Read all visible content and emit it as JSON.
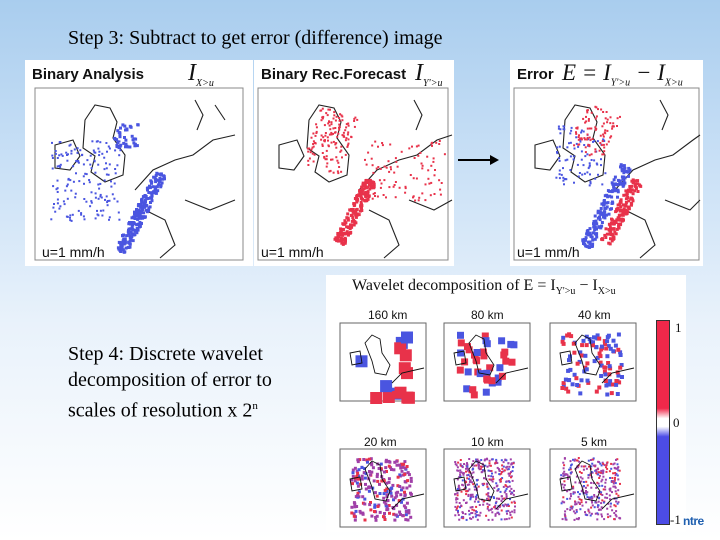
{
  "slide": {
    "step3_title": "Step 3: Subtract to get error (difference) image",
    "step4_line1": "Step 4: Discrete wavelet",
    "step4_line2": "decomposition of error to",
    "step4_line3": "scales of resolution x 2",
    "step4_exponent": "n"
  },
  "panels": [
    {
      "label": "Binary Analysis",
      "eq_main": "I",
      "eq_sub": "X>u",
      "unit": "u=1 mm/h",
      "color": "#4a55e0"
    },
    {
      "label": "Binary Rec.Forecast",
      "eq_main": "I",
      "eq_sub": "Y'>u",
      "unit": "u=1 mm/h",
      "color": "#e8324a"
    },
    {
      "label": "Error",
      "eq_main": "E = I",
      "eq_sub": "Y'>u",
      "eq_mid": " − I",
      "eq_sub2": "X>u",
      "unit": "u=1 mm/h"
    }
  ],
  "wavelet": {
    "title": "Wavelet decomposition of E = I",
    "title_sub1": "Y'>u",
    "title_mid": " − I",
    "title_sub2": "X>u",
    "scales": [
      "160 km",
      "80 km",
      "40 km",
      "20 km",
      "10 km",
      "5 km"
    ],
    "colorbar": {
      "max": "1",
      "mid": "0",
      "min": "-1",
      "pos_color": "#f0284a",
      "neg_color": "#4c4ce6"
    }
  },
  "logo": {
    "text": "ntre"
  },
  "colors": {
    "blue": "#4a55e0",
    "red": "#e8324a",
    "purple": "#a040a8"
  }
}
